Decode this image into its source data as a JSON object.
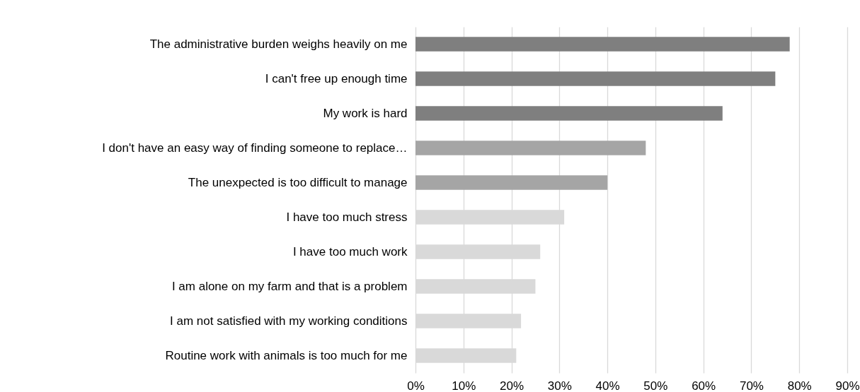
{
  "chart_data": {
    "type": "bar",
    "orientation": "horizontal",
    "categories": [
      "The administrative burden weighs heavily on me",
      "I can't free up enough time",
      "My work is hard",
      "I don't have an easy way of finding someone to replace…",
      "The unexpected is too difficult to manage",
      "I have too much stress",
      "I have too much work",
      "I am alone on my farm and that is a problem",
      "I am not satisfied with my working conditions",
      "Routine work with animals is too much for me"
    ],
    "values": [
      78,
      75,
      64,
      48,
      40,
      31,
      26,
      25,
      22,
      21
    ],
    "colors": [
      "#7f7f7f",
      "#7f7f7f",
      "#7f7f7f",
      "#a5a5a5",
      "#a5a5a5",
      "#d9d9d9",
      "#d9d9d9",
      "#d9d9d9",
      "#d9d9d9",
      "#d9d9d9"
    ],
    "xlim": [
      0,
      90
    ],
    "xticks": [
      {
        "value": 0,
        "label": "0%"
      },
      {
        "value": 10,
        "label": "10%"
      },
      {
        "value": 20,
        "label": "20%"
      },
      {
        "value": 30,
        "label": "30%"
      },
      {
        "value": 40,
        "label": "40%"
      },
      {
        "value": 50,
        "label": "50%"
      },
      {
        "value": 60,
        "label": "60%"
      },
      {
        "value": 70,
        "label": "70%"
      },
      {
        "value": 80,
        "label": "80%"
      },
      {
        "value": 90,
        "label": "90%"
      }
    ],
    "grid": "x"
  }
}
